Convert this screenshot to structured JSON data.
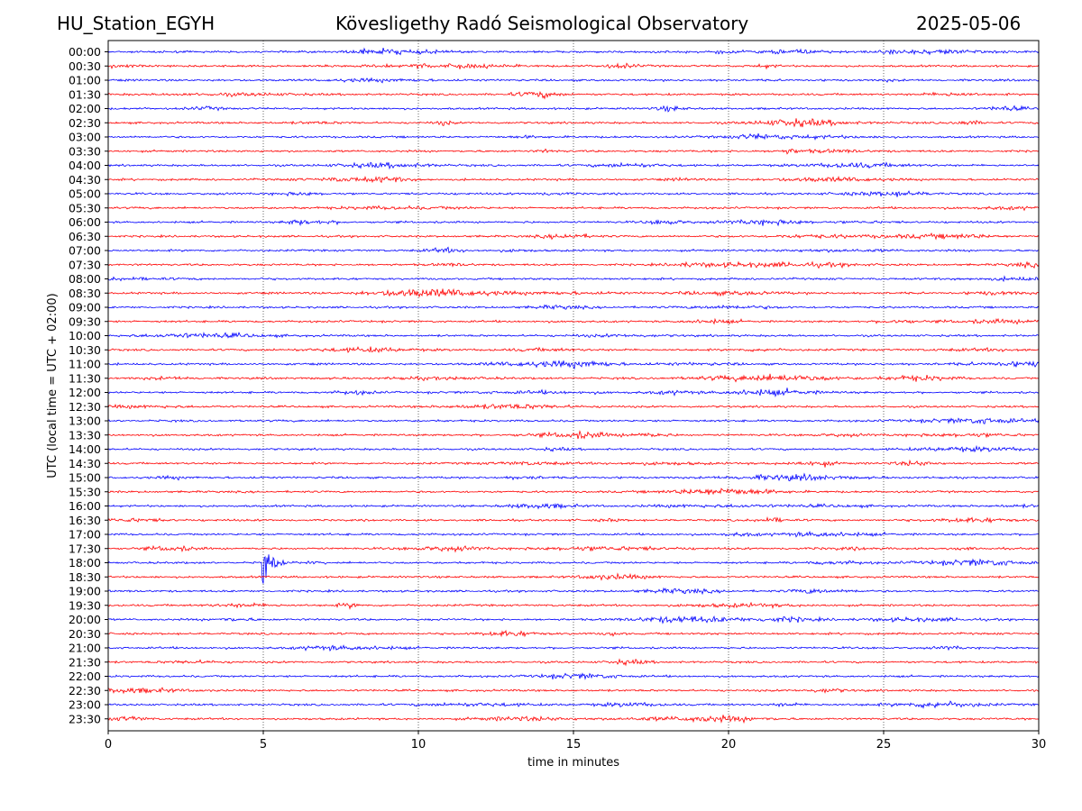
{
  "header": {
    "station": "HU_Station_EGYH",
    "observatory": "Kövesligethy Radó Seismological Observatory",
    "date": "2025-05-06"
  },
  "chart_data": {
    "type": "line",
    "title": "Kövesligethy Radó Seismological Observatory",
    "xlabel": "time in minutes",
    "ylabel": "UTC (local time = UTC + 02:00)",
    "xlim": [
      0,
      30
    ],
    "x_ticks": [
      "0",
      "5",
      "10",
      "15",
      "20",
      "25",
      "30"
    ],
    "x_tick_values": [
      0,
      5,
      10,
      15,
      20,
      25,
      30
    ],
    "grid": "vertical dotted lines at x ticks",
    "row_labels": [
      "00:00",
      "00:30",
      "01:00",
      "01:30",
      "02:00",
      "02:30",
      "03:00",
      "03:30",
      "04:00",
      "04:30",
      "05:00",
      "05:30",
      "06:00",
      "06:30",
      "07:00",
      "07:30",
      "08:00",
      "08:30",
      "09:00",
      "09:30",
      "10:00",
      "10:30",
      "11:00",
      "11:30",
      "12:00",
      "12:30",
      "13:00",
      "13:30",
      "14:00",
      "14:30",
      "15:00",
      "15:30",
      "16:00",
      "16:30",
      "17:00",
      "17:30",
      "18:00",
      "18:30",
      "19:00",
      "19:30",
      "20:00",
      "20:30",
      "21:00",
      "21:30",
      "22:00",
      "22:30",
      "23:00",
      "23:30"
    ],
    "colors": {
      "even_rows": "#0000ff",
      "odd_rows": "#ff0000"
    },
    "events": [
      {
        "row": "18:00",
        "onset_minute": 4.95,
        "coda_end_minute": 7.3,
        "peak_amplitude_rows": 1.0
      }
    ]
  }
}
